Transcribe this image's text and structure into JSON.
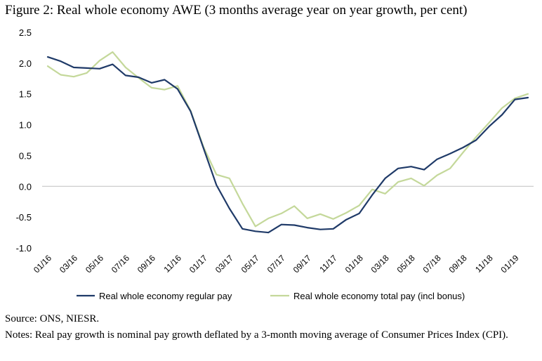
{
  "chart_data": {
    "type": "line",
    "title": "Figure 2: Real whole economy AWE (3 months average year on year growth, per cent)",
    "xlabel": "",
    "ylabel": "",
    "ylim": [
      -1.0,
      2.5
    ],
    "yticks": [
      "2.5",
      "2.0",
      "1.5",
      "1.0",
      "0.5",
      "0.0",
      "-0.5",
      "-1.0"
    ],
    "ytick_values": [
      2.5,
      2.0,
      1.5,
      1.0,
      0.5,
      0.0,
      -0.5,
      -1.0
    ],
    "x": [
      "01/16",
      "02/16",
      "03/16",
      "04/16",
      "05/16",
      "06/16",
      "07/16",
      "08/16",
      "09/16",
      "10/16",
      "11/16",
      "12/16",
      "01/17",
      "02/17",
      "03/17",
      "04/17",
      "05/17",
      "06/17",
      "07/17",
      "08/17",
      "09/17",
      "10/17",
      "11/17",
      "12/17",
      "01/18",
      "02/18",
      "03/18",
      "04/18",
      "05/18",
      "06/18",
      "07/18",
      "08/18",
      "09/18",
      "10/18",
      "11/18",
      "12/18",
      "01/19",
      "02/19"
    ],
    "xtick_labels": [
      "01/16",
      "03/16",
      "05/16",
      "07/16",
      "09/16",
      "11/16",
      "01/17",
      "03/17",
      "05/17",
      "07/17",
      "09/17",
      "11/17",
      "01/18",
      "03/18",
      "05/18",
      "07/18",
      "09/18",
      "11/18",
      "01/19"
    ],
    "series": [
      {
        "name": "Real whole economy regular pay",
        "color": "#1f3a68",
        "values": [
          2.1,
          2.03,
          1.93,
          1.92,
          1.91,
          1.98,
          1.8,
          1.77,
          1.68,
          1.73,
          1.58,
          1.22,
          0.62,
          0.02,
          -0.36,
          -0.69,
          -0.73,
          -0.75,
          -0.62,
          -0.63,
          -0.67,
          -0.7,
          -0.69,
          -0.54,
          -0.44,
          -0.14,
          0.13,
          0.29,
          0.32,
          0.27,
          0.44,
          0.53,
          0.63,
          0.75,
          0.97,
          1.16,
          1.41,
          1.44
        ]
      },
      {
        "name": "Real whole economy total pay (incl bonus)",
        "color": "#c4d89a",
        "values": [
          1.95,
          1.81,
          1.78,
          1.84,
          2.04,
          2.18,
          1.93,
          1.76,
          1.6,
          1.57,
          1.63,
          1.23,
          0.64,
          0.19,
          0.13,
          -0.28,
          -0.65,
          -0.52,
          -0.44,
          -0.32,
          -0.52,
          -0.45,
          -0.53,
          -0.43,
          -0.31,
          -0.05,
          -0.12,
          0.07,
          0.13,
          0.01,
          0.18,
          0.29,
          0.55,
          0.8,
          1.03,
          1.27,
          1.43,
          1.5
        ]
      }
    ],
    "grid": false,
    "legend_position": "bottom"
  },
  "footer": {
    "source": "Source: ONS, NIESR.",
    "notes": "Notes: Real pay growth is nominal pay growth deflated by a 3-month moving average of Consumer Prices Index (CPI)."
  }
}
